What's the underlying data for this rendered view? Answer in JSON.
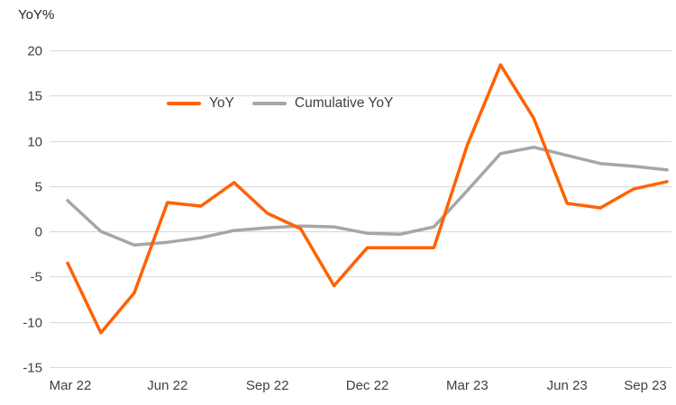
{
  "chart_data": {
    "type": "line",
    "title": "",
    "ylabel": "YoY%",
    "xlabel": "",
    "ylim": [
      -15,
      20
    ],
    "y_ticks": [
      20,
      15,
      10,
      5,
      0,
      -5,
      -10,
      -15
    ],
    "x_tick_labels": [
      "Mar 22",
      "Jun 22",
      "Sep 22",
      "Dec 22",
      "Mar 23",
      "Jun 23",
      "Sep 23"
    ],
    "x_tick_indices": [
      0,
      3,
      6,
      9,
      12,
      15,
      18
    ],
    "grid": "horizontal",
    "legend_position": "top-center",
    "gridline_color": "#D9D9D9",
    "tick_label_color": "#404040",
    "series": [
      {
        "name": "YoY",
        "color": "#FF6200",
        "values": [
          -3.5,
          -11.2,
          -6.8,
          3.2,
          2.8,
          5.4,
          2.0,
          0.3,
          -6.0,
          -1.8,
          -1.8,
          -1.8,
          9.5,
          18.4,
          12.5,
          3.1,
          2.6,
          4.7,
          5.5
        ]
      },
      {
        "name": "Cumulative YoY",
        "color": "#A6A6A6",
        "values": [
          3.4,
          0.0,
          -1.5,
          -1.2,
          -0.7,
          0.1,
          0.4,
          0.6,
          0.5,
          -0.2,
          -0.3,
          0.5,
          4.5,
          8.6,
          9.3,
          8.4,
          7.5,
          7.2,
          6.8
        ]
      }
    ]
  }
}
